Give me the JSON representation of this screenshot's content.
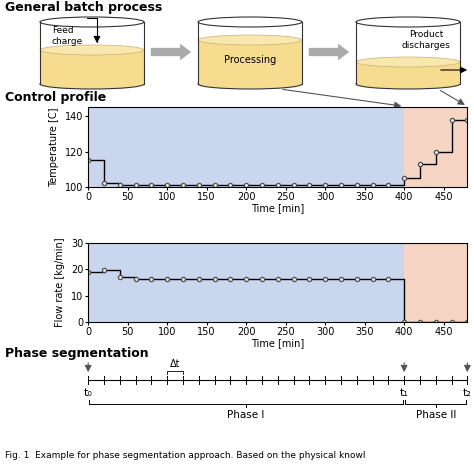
{
  "header": {
    "title": "General batch process"
  },
  "process": {
    "steps": [
      "Feed\ncharge",
      "Processing",
      "Product\ndischarges"
    ]
  },
  "control_profile": {
    "title": "Control profile"
  },
  "chart_data": [
    {
      "type": "line",
      "x": [
        0,
        20,
        40,
        60,
        80,
        100,
        120,
        140,
        160,
        180,
        200,
        220,
        240,
        260,
        280,
        300,
        320,
        340,
        360,
        380,
        400,
        420,
        440,
        460,
        480
      ],
      "values": [
        115,
        102,
        101,
        101,
        101,
        101,
        101,
        101,
        101,
        101,
        101,
        101,
        101,
        101,
        101,
        101,
        101,
        101,
        101,
        101,
        105,
        113,
        120,
        138,
        138
      ],
      "xlabel": "Time [min]",
      "ylabel": "Temperature [C]",
      "xlim": [
        0,
        480
      ],
      "xticks": [
        0,
        50,
        100,
        150,
        200,
        250,
        300,
        350,
        400,
        450
      ],
      "ylim": [
        100,
        145
      ],
      "yticks": [
        100,
        120,
        140
      ],
      "line_style": "steps",
      "marker": "o",
      "color": "#000000",
      "phase_spans": [
        {
          "from": 0,
          "to": 400,
          "color": "#c9d6ee"
        },
        {
          "from": 400,
          "to": 480,
          "color": "#f6d5c4"
        }
      ]
    },
    {
      "type": "line",
      "x": [
        0,
        20,
        40,
        60,
        80,
        100,
        120,
        140,
        160,
        180,
        200,
        220,
        240,
        260,
        280,
        300,
        320,
        340,
        360,
        380,
        400,
        420,
        440,
        460,
        480
      ],
      "values": [
        19,
        19.8,
        17,
        16.5,
        16.5,
        16.5,
        16.5,
        16.5,
        16.5,
        16.5,
        16.5,
        16.5,
        16.5,
        16.5,
        16.5,
        16.5,
        16.5,
        16.5,
        16.5,
        16.5,
        0,
        0,
        0,
        0,
        0
      ],
      "xlabel": "Time [min]",
      "ylabel": "Flow rate [kg/min]",
      "xlim": [
        0,
        480
      ],
      "xticks": [
        0,
        50,
        100,
        150,
        200,
        250,
        300,
        350,
        400,
        450
      ],
      "ylim": [
        0,
        30
      ],
      "yticks": [
        0,
        10,
        20,
        30
      ],
      "line_style": "steps",
      "marker": "o",
      "color": "#000000",
      "phase_spans": [
        {
          "from": 0,
          "to": 400,
          "color": "#c9d6ee"
        },
        {
          "from": 400,
          "to": 480,
          "color": "#f6d5c4"
        }
      ]
    }
  ],
  "phase_segmentation": {
    "title": "Phase segmentation",
    "step": 20,
    "step_label": "Δt",
    "marks": [
      {
        "value": 0,
        "label": "t₀"
      },
      {
        "value": 400,
        "label": "t₁"
      },
      {
        "value": 480,
        "label": "t₂"
      }
    ],
    "phases": [
      {
        "label": "Phase I",
        "from": 0,
        "to": 400
      },
      {
        "label": "Phase II",
        "from": 400,
        "to": 480
      }
    ]
  },
  "caption": "Fig. 1  Example for phase segmentation approach. Based on the physical knowl"
}
